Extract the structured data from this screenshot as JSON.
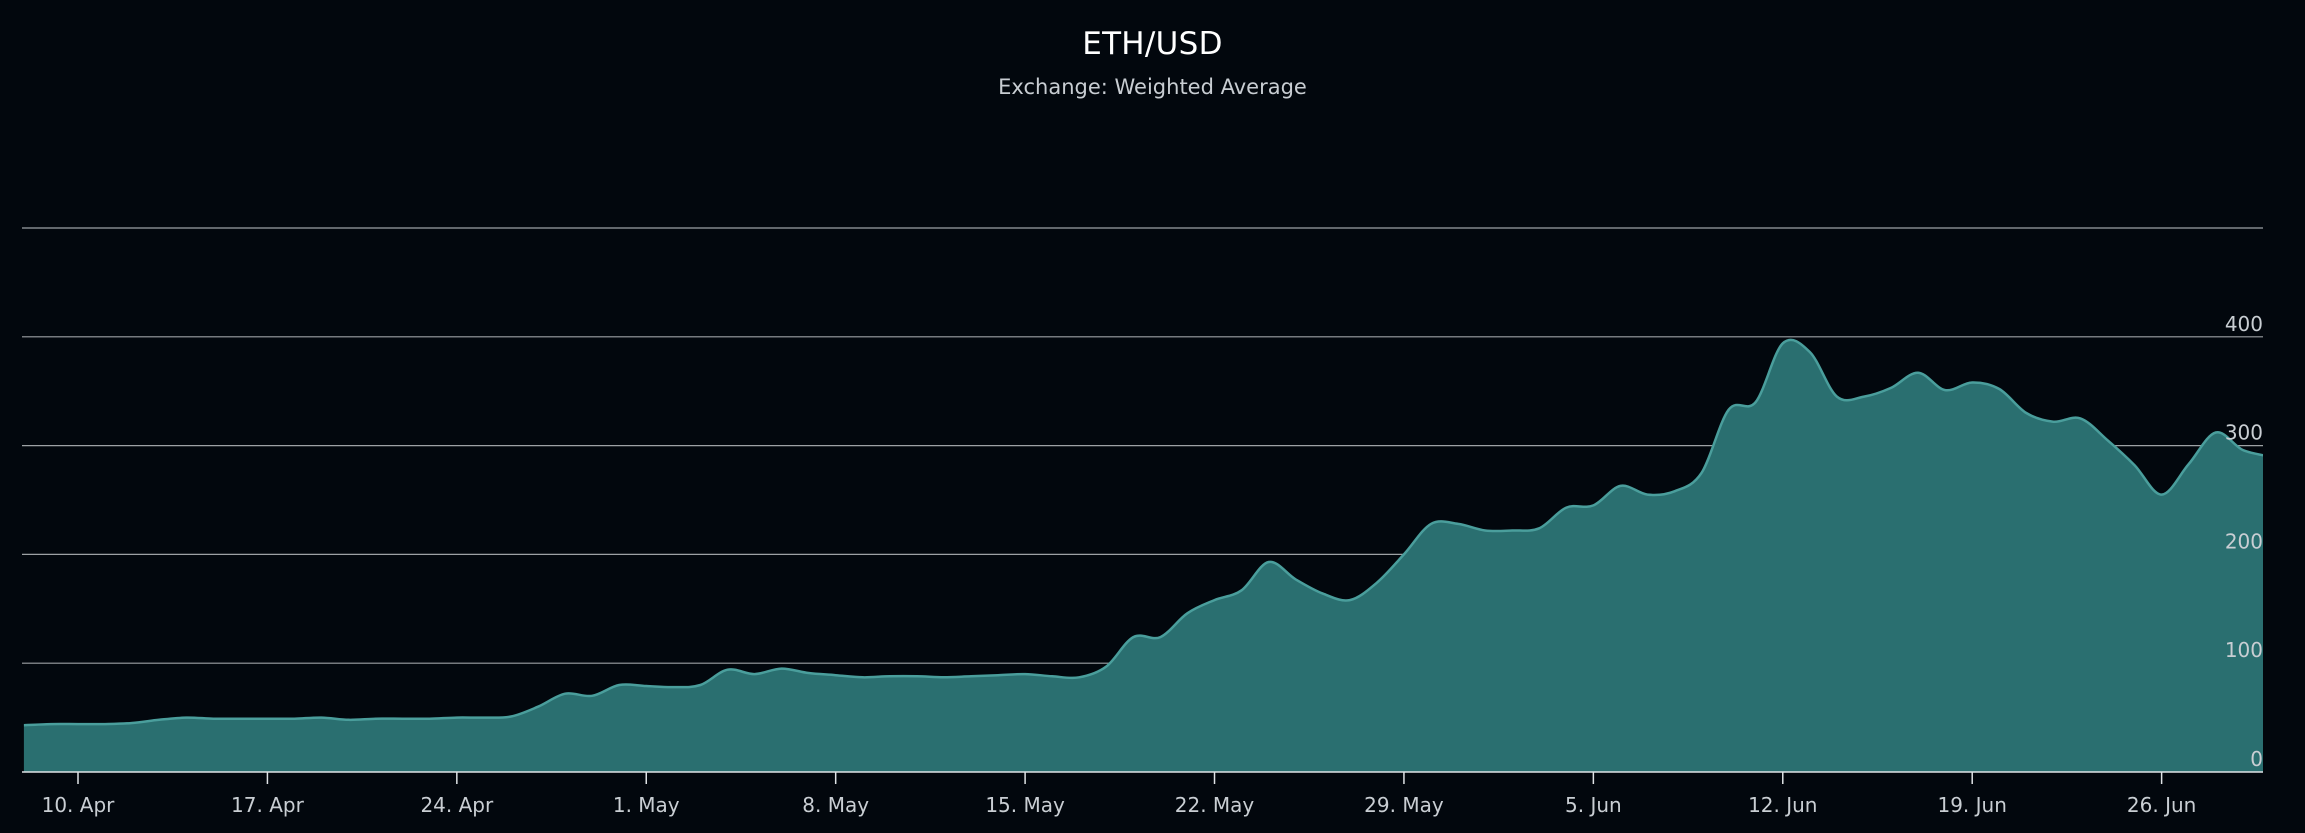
{
  "title": "ETH/USD",
  "subtitle": "Exchange: Weighted Average",
  "colors": {
    "background": "#02070d",
    "area_fill": "#2a6f70",
    "line": "#4a9e9c",
    "grid": "#b8bcc0",
    "text": "#c9ced3"
  },
  "chart_data": {
    "type": "area",
    "title": "ETH/USD",
    "subtitle": "Exchange: Weighted Average",
    "xlabel": "",
    "ylabel": "",
    "x_tick_labels": [
      "10. Apr",
      "17. Apr",
      "24. Apr",
      "1. May",
      "8. May",
      "15. May",
      "22. May",
      "29. May",
      "5. Jun",
      "12. Jun",
      "19. Jun",
      "26. Jun"
    ],
    "x_tick_dates": [
      "2017-04-10",
      "2017-04-17",
      "2017-04-24",
      "2017-05-01",
      "2017-05-08",
      "2017-05-15",
      "2017-05-22",
      "2017-05-29",
      "2017-06-05",
      "2017-06-12",
      "2017-06-19",
      "2017-06-26"
    ],
    "y_tick_labels": [
      "0",
      "100",
      "200",
      "300",
      "400"
    ],
    "y_ticks": [
      0,
      100,
      200,
      300,
      400
    ],
    "ylim": [
      0,
      500
    ],
    "xlim": [
      "2017-04-08",
      "2017-06-30"
    ],
    "grid": true,
    "legend": "none",
    "series": [
      {
        "x": [
          "2017-04-08",
          "2017-04-09",
          "2017-04-10",
          "2017-04-11",
          "2017-04-12",
          "2017-04-13",
          "2017-04-14",
          "2017-04-15",
          "2017-04-16",
          "2017-04-17",
          "2017-04-18",
          "2017-04-19",
          "2017-04-20",
          "2017-04-21",
          "2017-04-22",
          "2017-04-23",
          "2017-04-24",
          "2017-04-25",
          "2017-04-26",
          "2017-04-27",
          "2017-04-28",
          "2017-04-29",
          "2017-04-30",
          "2017-05-01",
          "2017-05-02",
          "2017-05-03",
          "2017-05-04",
          "2017-05-05",
          "2017-05-06",
          "2017-05-07",
          "2017-05-08",
          "2017-05-09",
          "2017-05-10",
          "2017-05-11",
          "2017-05-12",
          "2017-05-13",
          "2017-05-14",
          "2017-05-15",
          "2017-05-16",
          "2017-05-17",
          "2017-05-18",
          "2017-05-19",
          "2017-05-20",
          "2017-05-21",
          "2017-05-22",
          "2017-05-23",
          "2017-05-24",
          "2017-05-25",
          "2017-05-26",
          "2017-05-27",
          "2017-05-28",
          "2017-05-29",
          "2017-05-30",
          "2017-05-31",
          "2017-06-01",
          "2017-06-02",
          "2017-06-03",
          "2017-06-04",
          "2017-06-05",
          "2017-06-06",
          "2017-06-07",
          "2017-06-08",
          "2017-06-09",
          "2017-06-10",
          "2017-06-11",
          "2017-06-12",
          "2017-06-13",
          "2017-06-14",
          "2017-06-15",
          "2017-06-16",
          "2017-06-17",
          "2017-06-18",
          "2017-06-19",
          "2017-06-20",
          "2017-06-21",
          "2017-06-22",
          "2017-06-23",
          "2017-06-24",
          "2017-06-25",
          "2017-06-26",
          "2017-06-27",
          "2017-06-28",
          "2017-06-29",
          "2017-06-30"
        ],
        "values": [
          43,
          44,
          44,
          44,
          45,
          48,
          50,
          49,
          49,
          49,
          49,
          50,
          48,
          49,
          49,
          49,
          50,
          50,
          51,
          60,
          72,
          70,
          80,
          79,
          78,
          80,
          94,
          90,
          95,
          91,
          89,
          87,
          88,
          88,
          87,
          88,
          89,
          90,
          88,
          87,
          97,
          124,
          124,
          146,
          158,
          167,
          193,
          177,
          164,
          158,
          174,
          200,
          228,
          228,
          222,
          222,
          224,
          243,
          245,
          263,
          255,
          258,
          275,
          333,
          340,
          394,
          386,
          345,
          345,
          353,
          367,
          351,
          358,
          352,
          330,
          322,
          325,
          305,
          282,
          255,
          283,
          312,
          296,
          290
        ]
      }
    ]
  }
}
